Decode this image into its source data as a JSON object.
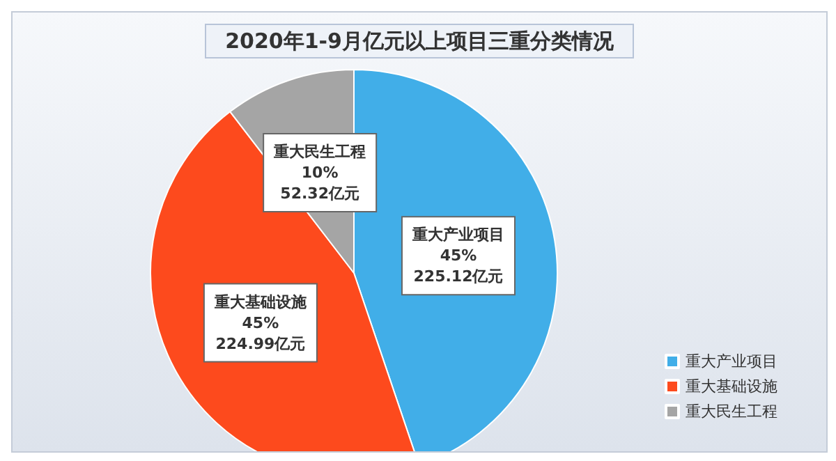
{
  "chart_data": {
    "type": "pie",
    "title": "2020年1-9月亿元以上项目三重分类情况",
    "categories": [
      "重大产业项目",
      "重大基础设施",
      "重大民生工程"
    ],
    "values": [
      225.12,
      224.99,
      52.32
    ],
    "value_labels": [
      "45%\n225.12亿元",
      "45%\n224.99亿元",
      "10%\n52.32亿元"
    ],
    "colors": [
      "#41aee8",
      "#fd4a1d",
      "#a5a5a5"
    ],
    "legend": "bottom right"
  }
}
